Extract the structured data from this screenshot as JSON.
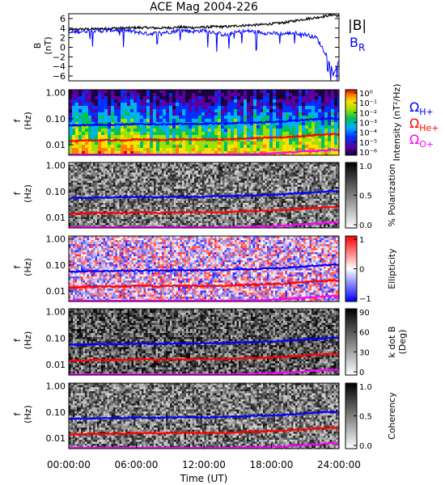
{
  "figure": {
    "title": "ACE Mag 2004-226",
    "time_axis_label": "Time (UT)",
    "time_tick_labels": [
      "00:00:00",
      "06:00:00",
      "12:00:00",
      "18:00:00",
      "24:00:00"
    ]
  },
  "colors": {
    "B_total": "#000000",
    "B_R": "#0000ff",
    "omega_H": "#0000ff",
    "omega_He": "#ff0000",
    "omega_O": "#ff00ff"
  },
  "legend": {
    "B_total_label": "|B|",
    "B_R_base": "B",
    "B_R_sub": "R",
    "omega_symbol": "Ω",
    "omega_H_sub": "H+",
    "omega_He_sub": "He+",
    "omega_O_sub": "O+"
  },
  "chart_data": [
    {
      "type": "line",
      "name": "magnetic field",
      "ylabel_top": "B",
      "ylabel_bottom": "(nT)",
      "xlim_hours": [
        0,
        24
      ],
      "ylim": [
        -7,
        7
      ],
      "y_ticks": [
        "6",
        "4",
        "2",
        "0",
        "−2",
        "−4",
        "−6"
      ],
      "series": [
        {
          "name": "|B|",
          "x_hours": [
            0,
            1,
            2,
            3,
            4,
            5,
            6,
            7,
            8,
            9,
            10,
            11,
            12,
            13,
            14,
            15,
            16,
            17,
            18,
            19,
            20,
            21,
            22,
            23,
            23.5,
            24
          ],
          "values": [
            3.6,
            3.8,
            3.8,
            3.9,
            4.0,
            4.0,
            4.1,
            4.1,
            4.0,
            4.1,
            4.2,
            4.1,
            4.2,
            4.3,
            4.3,
            4.5,
            4.6,
            4.7,
            4.9,
            5.1,
            5.5,
            5.9,
            6.2,
            6.6,
            6.8,
            6.5
          ]
        },
        {
          "name": "B_R",
          "x_hours": [
            0,
            1,
            2,
            3,
            4,
            5,
            6,
            7,
            8,
            9,
            10,
            11,
            12,
            13,
            14,
            15,
            16,
            17,
            18,
            19,
            20,
            21,
            22,
            23,
            23.5,
            24
          ],
          "values": [
            3.0,
            3.3,
            3.5,
            3.4,
            3.6,
            3.5,
            3.2,
            2.8,
            3.0,
            3.2,
            3.6,
            3.3,
            3.5,
            3.1,
            2.5,
            3.2,
            3.4,
            3.1,
            2.9,
            2.8,
            3.0,
            2.7,
            2.0,
            -2.0,
            -5.5,
            -3.0
          ]
        }
      ]
    },
    {
      "type": "heatmap",
      "name": "power spectral density",
      "ylabel_top": "f",
      "ylabel_bottom": "(Hz)",
      "y_scale": "log",
      "ylim": [
        0.004,
        1.3
      ],
      "y_ticks": [
        "1.00",
        "0.10",
        "0.01"
      ],
      "colorbar_label": "Intensity (nT²/Hz)",
      "colorbar_scale": "log",
      "colorbar_ticks": [
        "10⁰",
        "10⁻¹",
        "10⁻²",
        "10⁻³",
        "10⁻⁴",
        "10⁻⁵",
        "10⁻⁶"
      ]
    },
    {
      "type": "heatmap",
      "name": "degree of polarization",
      "ylabel_top": "f",
      "ylabel_bottom": "(Hz)",
      "y_scale": "log",
      "ylim": [
        0.004,
        1.3
      ],
      "y_ticks": [
        "1.00",
        "0.10",
        "0.01"
      ],
      "colorbar_label": "% Polarization",
      "colorbar_range": [
        0,
        1
      ],
      "colorbar_ticks": [
        "1.0",
        "0.5",
        "0.0"
      ]
    },
    {
      "type": "heatmap",
      "name": "ellipticity",
      "ylabel_top": "f",
      "ylabel_bottom": "(Hz)",
      "y_scale": "log",
      "ylim": [
        0.004,
        1.3
      ],
      "y_ticks": [
        "1.00",
        "0.10",
        "0.01"
      ],
      "colorbar_label": "Ellipticity",
      "colorbar_range": [
        -1,
        1
      ],
      "colorbar_ticks": [
        "1",
        "0",
        "−1"
      ]
    },
    {
      "type": "heatmap",
      "name": "wave normal angle",
      "ylabel_top": "f",
      "ylabel_bottom": "(Hz)",
      "y_scale": "log",
      "ylim": [
        0.004,
        1.3
      ],
      "y_ticks": [
        "1.00",
        "0.10",
        "0.01"
      ],
      "colorbar_label_top": "k dot B",
      "colorbar_label_bottom": "(Deg)",
      "colorbar_range": [
        0,
        90
      ],
      "colorbar_ticks": [
        "90",
        "60",
        "30",
        "0"
      ]
    },
    {
      "type": "heatmap",
      "name": "coherency",
      "ylabel_top": "f",
      "ylabel_bottom": "(Hz)",
      "y_scale": "log",
      "ylim": [
        0.004,
        1.3
      ],
      "y_ticks": [
        "1.00",
        "0.10",
        "0.01"
      ],
      "colorbar_label": "Coherency",
      "colorbar_range": [
        0,
        1
      ],
      "colorbar_ticks": [
        "1.0",
        "0.5",
        "0.0"
      ]
    }
  ],
  "gyrofrequency_lines": {
    "x_hours": [
      0,
      1,
      2,
      3,
      4,
      5,
      6,
      7,
      8,
      9,
      10,
      11,
      12,
      13,
      14,
      15,
      16,
      17,
      18,
      19,
      20,
      21,
      22,
      23,
      23.5,
      24
    ],
    "H_plus_hz": [
      0.055,
      0.057,
      0.058,
      0.059,
      0.06,
      0.061,
      0.062,
      0.062,
      0.061,
      0.062,
      0.064,
      0.063,
      0.064,
      0.066,
      0.066,
      0.069,
      0.07,
      0.072,
      0.075,
      0.078,
      0.084,
      0.09,
      0.095,
      0.101,
      0.104,
      0.099
    ],
    "He_plus_hz": [
      0.014,
      0.014,
      0.015,
      0.015,
      0.015,
      0.015,
      0.016,
      0.016,
      0.015,
      0.016,
      0.016,
      0.016,
      0.016,
      0.016,
      0.016,
      0.017,
      0.018,
      0.018,
      0.019,
      0.019,
      0.021,
      0.022,
      0.024,
      0.025,
      0.026,
      0.025
    ],
    "O_plus_hz": [
      0.0034,
      0.0036,
      0.0036,
      0.0037,
      0.0038,
      0.0038,
      0.0039,
      0.0039,
      0.0038,
      0.0039,
      0.004,
      0.0039,
      0.004,
      0.0041,
      0.0041,
      0.0043,
      0.0044,
      0.0045,
      0.0047,
      0.0049,
      0.0052,
      0.0056,
      0.0059,
      0.0063,
      0.0065,
      0.0062
    ]
  }
}
